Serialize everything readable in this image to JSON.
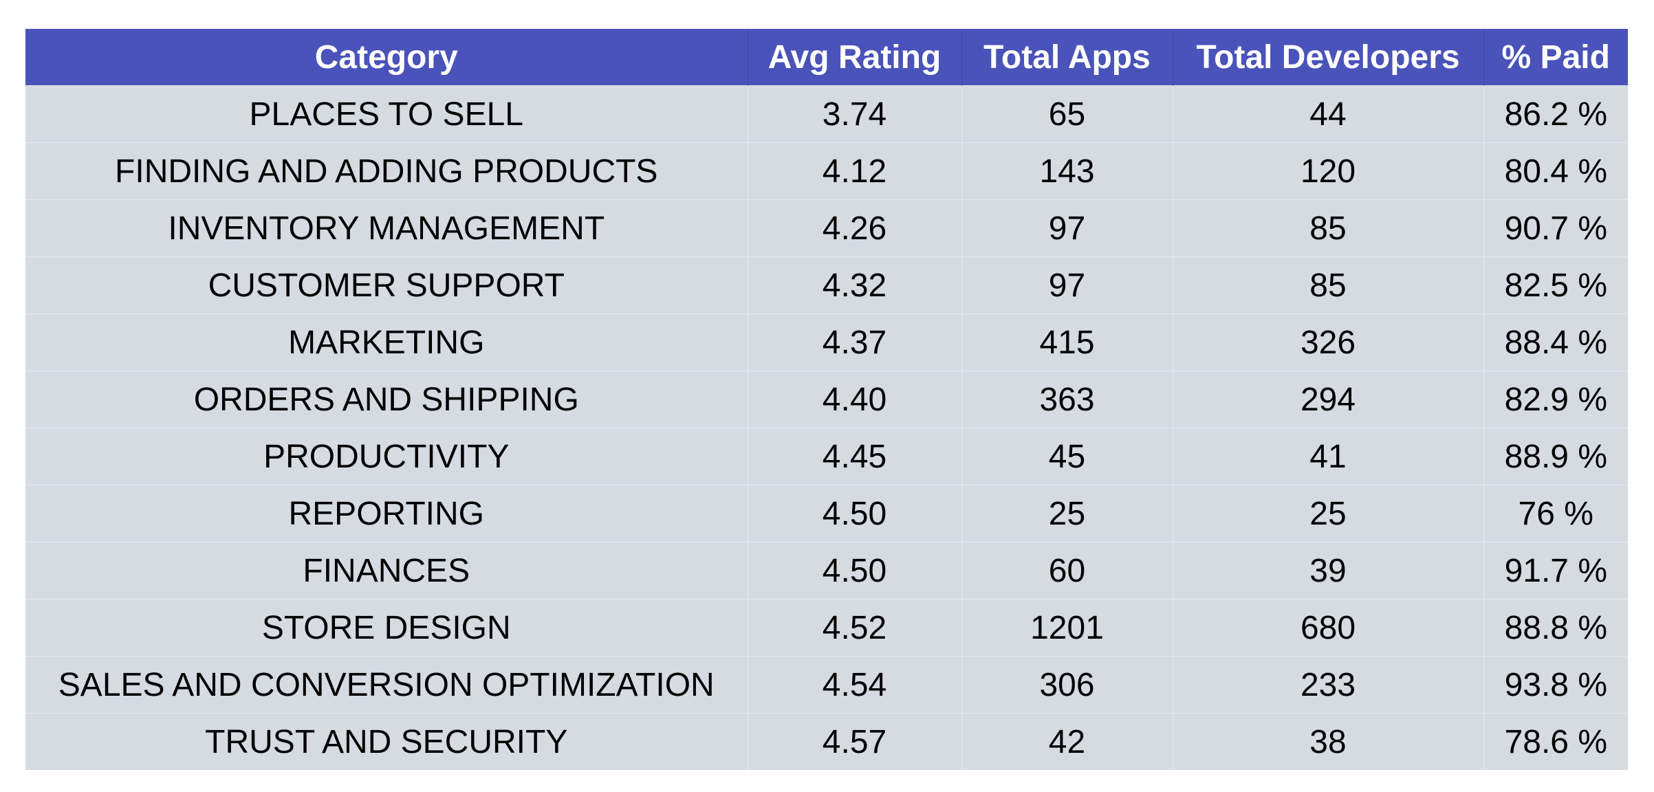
{
  "chart_data": {
    "type": "table",
    "columns": [
      "Category",
      "Avg Rating",
      "Total Apps",
      "Total Developers",
      "% Paid"
    ],
    "rows": [
      [
        "PLACES TO SELL",
        "3.74",
        "65",
        "44",
        "86.2 %"
      ],
      [
        "FINDING AND ADDING PRODUCTS",
        "4.12",
        "143",
        "120",
        "80.4 %"
      ],
      [
        "INVENTORY MANAGEMENT",
        "4.26",
        "97",
        "85",
        "90.7 %"
      ],
      [
        "CUSTOMER SUPPORT",
        "4.32",
        "97",
        "85",
        "82.5 %"
      ],
      [
        "MARKETING",
        "4.37",
        "415",
        "326",
        "88.4 %"
      ],
      [
        "ORDERS AND SHIPPING",
        "4.40",
        "363",
        "294",
        "82.9 %"
      ],
      [
        "PRODUCTIVITY",
        "4.45",
        "45",
        "41",
        "88.9 %"
      ],
      [
        "REPORTING",
        "4.50",
        "25",
        "25",
        "76 %"
      ],
      [
        "FINANCES",
        "4.50",
        "60",
        "39",
        "91.7 %"
      ],
      [
        "STORE DESIGN",
        "4.52",
        "1201",
        "680",
        "88.8 %"
      ],
      [
        "SALES AND CONVERSION OPTIMIZATION",
        "4.54",
        "306",
        "233",
        "93.8 %"
      ],
      [
        "TRUST AND SECURITY",
        "4.57",
        "42",
        "38",
        "78.6 %"
      ]
    ],
    "header_color": "#4a53b9",
    "row_color": "#d6dbe2"
  }
}
